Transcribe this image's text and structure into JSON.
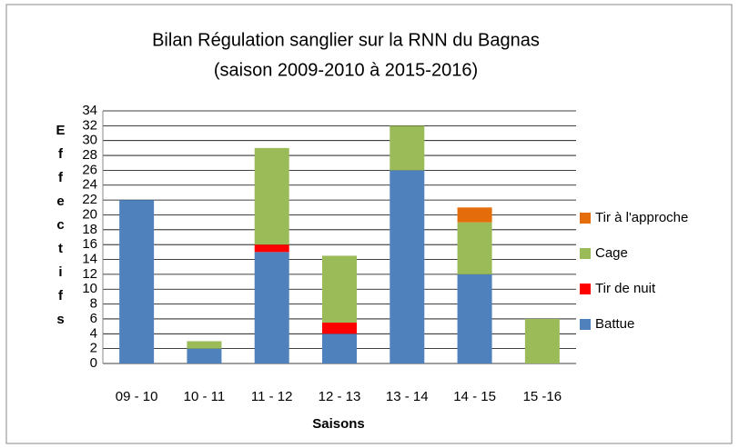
{
  "chart_data": {
    "type": "stacked_bar",
    "title": "Bilan Régulation sanglier sur la RNN du Bagnas",
    "subtitle": "(saison 2009-2010 à 2015-2016)",
    "x_label": "Saisons",
    "y_label": "Effectifs",
    "categories": [
      "09 - 10",
      "10 - 11",
      "11 - 12",
      "12 - 13",
      "13 - 14",
      "14 - 15",
      "15 -16"
    ],
    "series": [
      {
        "name": "Battue",
        "color": "#4f81bd",
        "values": [
          22,
          2,
          15,
          4,
          26,
          12,
          0
        ]
      },
      {
        "name": "Tir de nuit",
        "color": "#ff0000",
        "values": [
          0,
          0,
          1,
          1.5,
          0,
          0,
          0
        ]
      },
      {
        "name": "Cage",
        "color": "#9bbb59",
        "values": [
          0,
          1,
          13,
          9,
          6,
          7,
          6
        ]
      },
      {
        "name": "Tir à l'approche",
        "color": "#e46c0a",
        "values": [
          0,
          0,
          0,
          0,
          0,
          2,
          0
        ]
      }
    ],
    "ylim": [
      0,
      34
    ],
    "yticks": [
      0,
      2,
      4,
      6,
      8,
      10,
      12,
      14,
      16,
      18,
      20,
      22,
      24,
      26,
      28,
      30,
      32,
      34
    ],
    "grid": true,
    "legend": "right"
  }
}
